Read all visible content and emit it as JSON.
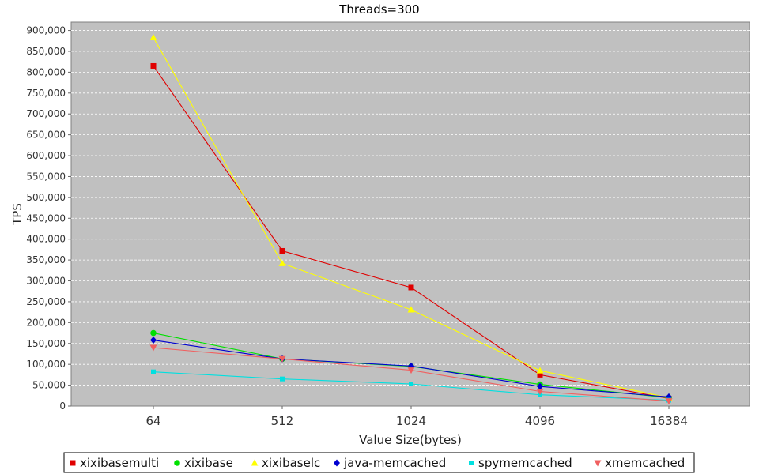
{
  "chart_data": {
    "type": "line",
    "title": "Threads=300",
    "xlabel": "Value Size(bytes)",
    "ylabel": "TPS",
    "categories": [
      "64",
      "512",
      "1024",
      "4096",
      "16384"
    ],
    "ylim": [
      0,
      920000
    ],
    "yticks": [
      0,
      50000,
      100000,
      150000,
      200000,
      250000,
      300000,
      350000,
      400000,
      450000,
      500000,
      550000,
      600000,
      650000,
      700000,
      750000,
      800000,
      850000,
      900000
    ],
    "ytick_labels": [
      "0",
      "50,000",
      "100,000",
      "150,000",
      "200,000",
      "250,000",
      "300,000",
      "350,000",
      "400,000",
      "450,000",
      "500,000",
      "550,000",
      "600,000",
      "650,000",
      "700,000",
      "750,000",
      "800,000",
      "850,000",
      "900,000"
    ],
    "grid": true,
    "legend_position": "bottom",
    "plot_background": "#c0c0c0",
    "series": [
      {
        "name": "xixibasemulti",
        "color": "#e00000",
        "marker": "square",
        "values": [
          815000,
          372000,
          284000,
          75000,
          18000
        ]
      },
      {
        "name": "xixibase",
        "color": "#00e000",
        "marker": "circle",
        "values": [
          175000,
          113000,
          95000,
          52000,
          20000
        ]
      },
      {
        "name": "xixibaselc",
        "color": "#ffff00",
        "marker": "triangle-up",
        "values": [
          883000,
          342000,
          231000,
          85000,
          20000
        ]
      },
      {
        "name": "java-memcached",
        "color": "#0000d0",
        "marker": "diamond",
        "values": [
          158000,
          113000,
          96000,
          47000,
          22000
        ]
      },
      {
        "name": "spymemcached",
        "color": "#00e0e0",
        "marker": "square-small",
        "values": [
          82000,
          65000,
          53000,
          27000,
          14000
        ]
      },
      {
        "name": "xmemcached",
        "color": "#f06060",
        "marker": "triangle-down",
        "values": [
          140000,
          113000,
          86000,
          35000,
          12000
        ]
      }
    ]
  }
}
